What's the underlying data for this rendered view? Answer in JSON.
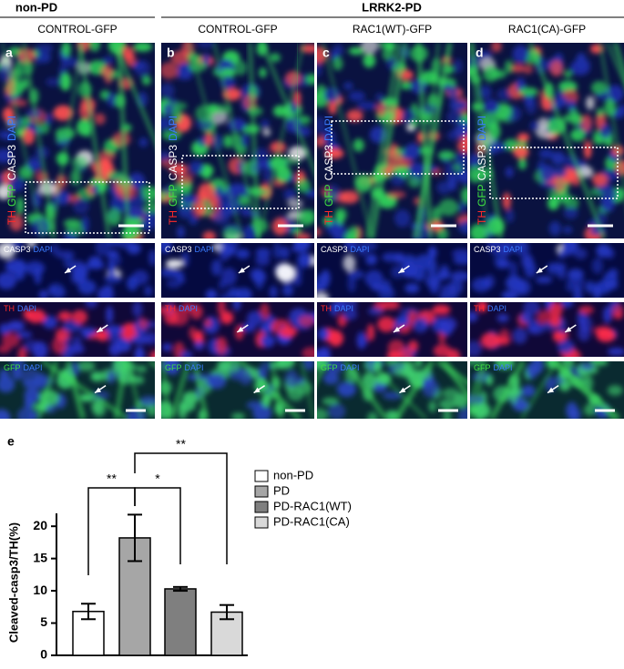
{
  "header": {
    "groups": [
      "non-PD",
      "LRRK2-PD"
    ],
    "columns": [
      "CONTROL-GFP",
      "CONTROL-GFP",
      "RAC1(WT)-GFP",
      "RAC1(CA)-GFP"
    ],
    "panel_labels": [
      "a",
      "b",
      "c",
      "d"
    ]
  },
  "stains": {
    "top": [
      "TH",
      "GFP",
      "CASP3",
      "DAPI"
    ],
    "rows": [
      [
        "CASP3",
        "DAPI"
      ],
      [
        "TH",
        "DAPI"
      ],
      [
        "GFP",
        "DAPI"
      ]
    ]
  },
  "chart_data": {
    "type": "bar",
    "panel_label": "e",
    "ylabel": "Cleaved-casp3/TH(%)",
    "categories": [
      "non-PD",
      "PD",
      "PD-RAC1(WT)",
      "PD-RAC1(CA)"
    ],
    "values": [
      6.8,
      18.2,
      10.3,
      6.7
    ],
    "errors": [
      1.2,
      3.6,
      0.3,
      1.1
    ],
    "colors": [
      "#ffffff",
      "#a6a6a6",
      "#7f7f7f",
      "#d9d9d9"
    ],
    "ylim": [
      0,
      22
    ],
    "yticks": [
      0,
      5,
      10,
      15,
      20
    ],
    "annotations": [
      "**",
      "*",
      "**"
    ]
  }
}
